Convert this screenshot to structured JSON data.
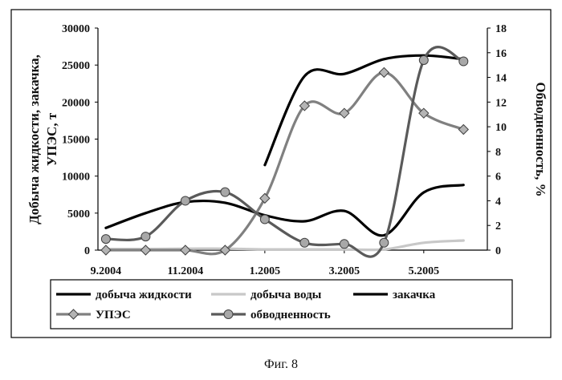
{
  "caption": "Фиг. 8",
  "chart_data": {
    "type": "line",
    "ylabel_left": "Добыча жидкости, закачка, УПЭС, т",
    "ylabel_left_lines": [
      "Добыча жидкости, закачка,",
      "УПЭС, т"
    ],
    "ylabel_right": "Обводненность, %",
    "ylim_left": [
      0,
      30000
    ],
    "ylim_right": [
      0,
      18
    ],
    "y_ticks_left": [
      0,
      5000,
      10000,
      15000,
      20000,
      25000,
      30000
    ],
    "y_ticks_right": [
      0,
      2,
      4,
      6,
      8,
      10,
      12,
      14,
      16,
      18
    ],
    "x_ticks": [
      "9.2004",
      "11.2004",
      "1.2005",
      "3.2005",
      "5.2005"
    ],
    "x_tick_positions": [
      0,
      2,
      4,
      6,
      8
    ],
    "xlim": [
      -0.2,
      9.6
    ],
    "grid": false,
    "legend_position": "bottom",
    "series": [
      {
        "name": "добыча жидкости",
        "axis": "left",
        "color": "#000000",
        "width": 3.2,
        "marker": "none",
        "x": [
          0,
          1,
          2,
          3,
          4,
          5,
          6,
          7,
          8,
          9
        ],
        "values": [
          3000,
          5000,
          6500,
          6400,
          4700,
          3900,
          5300,
          2000,
          7800,
          8800
        ]
      },
      {
        "name": "добыча воды",
        "axis": "left",
        "color": "#c8c8c8",
        "width": 3.2,
        "marker": "none",
        "x": [
          0,
          1,
          2,
          3,
          4,
          5,
          6,
          7,
          8,
          9
        ],
        "values": [
          150,
          150,
          200,
          200,
          100,
          100,
          100,
          100,
          1000,
          1300
        ]
      },
      {
        "name": "закачка",
        "axis": "left",
        "color": "#000000",
        "width": 3.2,
        "marker": "none",
        "x": [
          4,
          5,
          6,
          7,
          8,
          9
        ],
        "values": [
          11500,
          23500,
          23800,
          25800,
          26300,
          25800
        ]
      },
      {
        "name": "УПЭС",
        "axis": "left",
        "color": "#808080",
        "width": 3.2,
        "marker": "diamond",
        "marker_fill": "#b4b4b4",
        "x": [
          0,
          1,
          2,
          3,
          4,
          5,
          6,
          7,
          8,
          9
        ],
        "values": [
          0,
          0,
          0,
          0,
          7000,
          19500,
          18500,
          24000,
          18500,
          16300
        ]
      },
      {
        "name": "обводненность",
        "axis": "right",
        "color": "#5a5a5a",
        "width": 3.2,
        "marker": "circle",
        "marker_fill": "#a8a8a8",
        "x": [
          0,
          1,
          2,
          3,
          4,
          5,
          6,
          7,
          8,
          9
        ],
        "values": [
          0.9,
          1.1,
          4.0,
          4.7,
          2.5,
          0.6,
          0.5,
          0.6,
          15.4,
          15.3
        ]
      }
    ]
  }
}
